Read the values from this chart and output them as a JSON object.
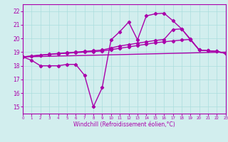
{
  "xlabel": "Windchill (Refroidissement éolien,°C)",
  "background_color": "#d2eeee",
  "grid_color": "#aadddd",
  "line_color": "#aa00aa",
  "xlim": [
    0,
    23
  ],
  "ylim": [
    14.5,
    22.5
  ],
  "xticks": [
    0,
    1,
    2,
    3,
    4,
    5,
    6,
    7,
    8,
    9,
    10,
    11,
    12,
    13,
    14,
    15,
    16,
    17,
    18,
    19,
    20,
    21,
    22,
    23
  ],
  "yticks": [
    15,
    16,
    17,
    18,
    19,
    20,
    21,
    22
  ],
  "series": [
    {
      "x": [
        0,
        1,
        2,
        3,
        4,
        5,
        6,
        7,
        8,
        9,
        10,
        11,
        12,
        13,
        14,
        15,
        16,
        17,
        18,
        19,
        20,
        21,
        22,
        23
      ],
      "y": [
        18.65,
        18.4,
        18.0,
        18.0,
        18.0,
        18.1,
        18.1,
        17.3,
        15.0,
        16.4,
        19.9,
        20.5,
        21.2,
        19.9,
        21.65,
        21.8,
        21.85,
        21.3,
        20.7,
        19.9,
        19.15,
        19.1,
        19.05,
        18.9
      ],
      "marker": true,
      "linewidth": 1.0
    },
    {
      "x": [
        0,
        1,
        2,
        3,
        4,
        5,
        6,
        7,
        8,
        9,
        10,
        11,
        12,
        13,
        14,
        15,
        16,
        17,
        18,
        19,
        20,
        21,
        22,
        23
      ],
      "y": [
        18.65,
        18.7,
        18.78,
        18.84,
        18.9,
        18.95,
        19.0,
        19.05,
        19.1,
        19.15,
        19.3,
        19.45,
        19.55,
        19.65,
        19.75,
        19.85,
        19.92,
        20.65,
        20.7,
        19.95,
        19.15,
        19.1,
        19.05,
        18.9
      ],
      "marker": true,
      "linewidth": 1.0
    },
    {
      "x": [
        0,
        1,
        2,
        3,
        4,
        5,
        6,
        7,
        8,
        9,
        10,
        11,
        12,
        13,
        14,
        15,
        16,
        17,
        18,
        19,
        20,
        21,
        22,
        23
      ],
      "y": [
        18.65,
        18.72,
        18.78,
        18.83,
        18.88,
        18.92,
        18.96,
        19.0,
        19.04,
        19.08,
        19.18,
        19.28,
        19.38,
        19.48,
        19.58,
        19.68,
        19.75,
        19.82,
        19.88,
        19.93,
        19.15,
        19.1,
        19.05,
        18.9
      ],
      "marker": true,
      "linewidth": 1.0
    },
    {
      "x": [
        0,
        23
      ],
      "y": [
        18.65,
        19.0
      ],
      "marker": false,
      "linewidth": 1.0
    }
  ]
}
